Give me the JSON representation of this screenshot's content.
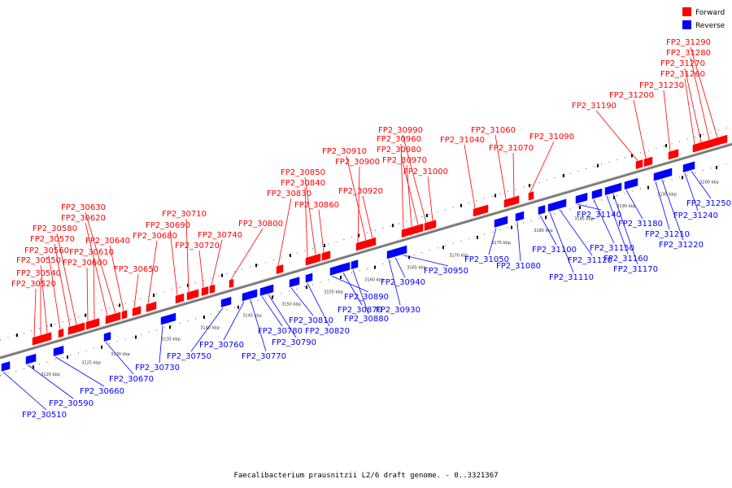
{
  "caption": "Faecalibacterium prausnitzii L2/6 draft genome. - 0..3321367",
  "legend": [
    {
      "label": "Forward",
      "color": "#ff0000"
    },
    {
      "label": "Reverse",
      "color": "#0000ff"
    }
  ],
  "colors": {
    "forward": "#ff0000",
    "reverse": "#0000ff",
    "backbone": "#777777"
  },
  "ticks": [
    "3120 kbp",
    "3125 kbp",
    "3130 kbp",
    "3135 kbp",
    "3140 kbp",
    "3145 kbp",
    "3150 kbp",
    "3155 kbp",
    "3160 kbp",
    "3165 kbp",
    "3170 kbp",
    "3175 kbp",
    "3180 kbp",
    "3185 kbp",
    "3190 kbp",
    "3195 kbp",
    "3200 kbp"
  ],
  "forward_genes": [
    "FP2_30520",
    "FP2_30540",
    "FP2_30550",
    "FP2_30560",
    "FP2_30570",
    "FP2_30580",
    "FP2_30600",
    "FP2_30610",
    "FP2_30620",
    "FP2_30630",
    "FP2_30640",
    "FP2_30650",
    "FP2_30680",
    "FP2_30690",
    "FP2_30710",
    "FP2_30720",
    "FP2_30740",
    "FP2_30800",
    "FP2_30830",
    "FP2_30840",
    "FP2_30850",
    "FP2_30860",
    "FP2_30900",
    "FP2_30910",
    "FP2_30920",
    "FP2_30960",
    "FP2_30970",
    "FP2_30980",
    "FP2_30990",
    "FP2_31000",
    "FP2_31040",
    "FP2_31060",
    "FP2_31070",
    "FP2_31090",
    "FP2_31190",
    "FP2_31200",
    "FP2_31230",
    "FP2_31260",
    "FP2_31270",
    "FP2_31280",
    "FP2_31290"
  ],
  "reverse_genes": [
    "FP2_30510",
    "FP2_30590",
    "FP2_30660",
    "FP2_30670",
    "FP2_30730",
    "FP2_30750",
    "FP2_30760",
    "FP2_30770",
    "FP2_30780",
    "FP2_30790",
    "FP2_30810",
    "FP2_30820",
    "FP2_30870",
    "FP2_30880",
    "FP2_30890",
    "FP2_30930",
    "FP2_30940",
    "FP2_30950",
    "FP2_31050",
    "FP2_31080",
    "FP2_31100",
    "FP2_31110",
    "FP2_31120",
    "FP2_31140",
    "FP2_31150",
    "FP2_31160",
    "FP2_31170",
    "FP2_31180",
    "FP2_31210",
    "FP2_31220",
    "FP2_31240",
    "FP2_31250"
  ]
}
